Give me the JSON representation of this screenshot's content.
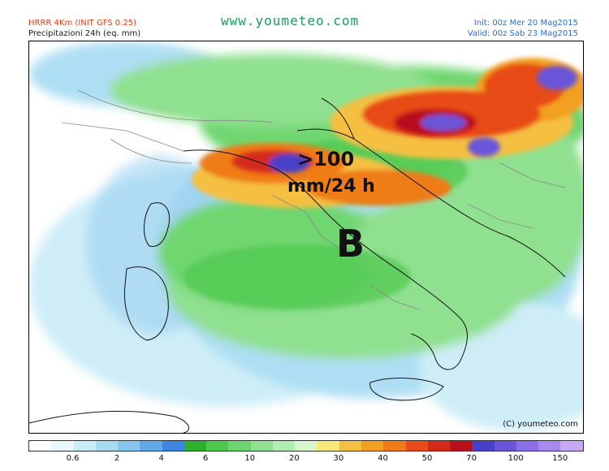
{
  "header": {
    "model": "HRRR 4Km (INIT GFS 0.25)",
    "variable": "Precipitazioni 24h (eq. mm)",
    "site": "www.youmeteo.com",
    "init": "Init: 00z Mer  20 Mag2015",
    "valid": "Valid: 00z Sab  23 Mag2015"
  },
  "map": {
    "annotation_value": ">100",
    "annotation_unit": "mm/24 h",
    "low_label": "B",
    "copyright": "(C) youmeteo.com"
  },
  "legend": {
    "colors": [
      "#ffffff",
      "#e8f7fb",
      "#c9ecf7",
      "#a6dbf2",
      "#86c5ee",
      "#63a9e8",
      "#3f86e2",
      "#2eb02e",
      "#4cc84c",
      "#6fd66f",
      "#8fe08f",
      "#b3ecb3",
      "#d8f6d0",
      "#f8e87a",
      "#f5c042",
      "#f3a020",
      "#ef7b18",
      "#e84c18",
      "#d42a1a",
      "#b8101a",
      "#4a3fc8",
      "#6a55d8",
      "#8a70e4",
      "#a88aee",
      "#c6a8f6"
    ],
    "ticks": [
      "0.6",
      "2",
      "4",
      "6",
      "10",
      "20",
      "30",
      "40",
      "50",
      "70",
      "100",
      "150"
    ]
  }
}
